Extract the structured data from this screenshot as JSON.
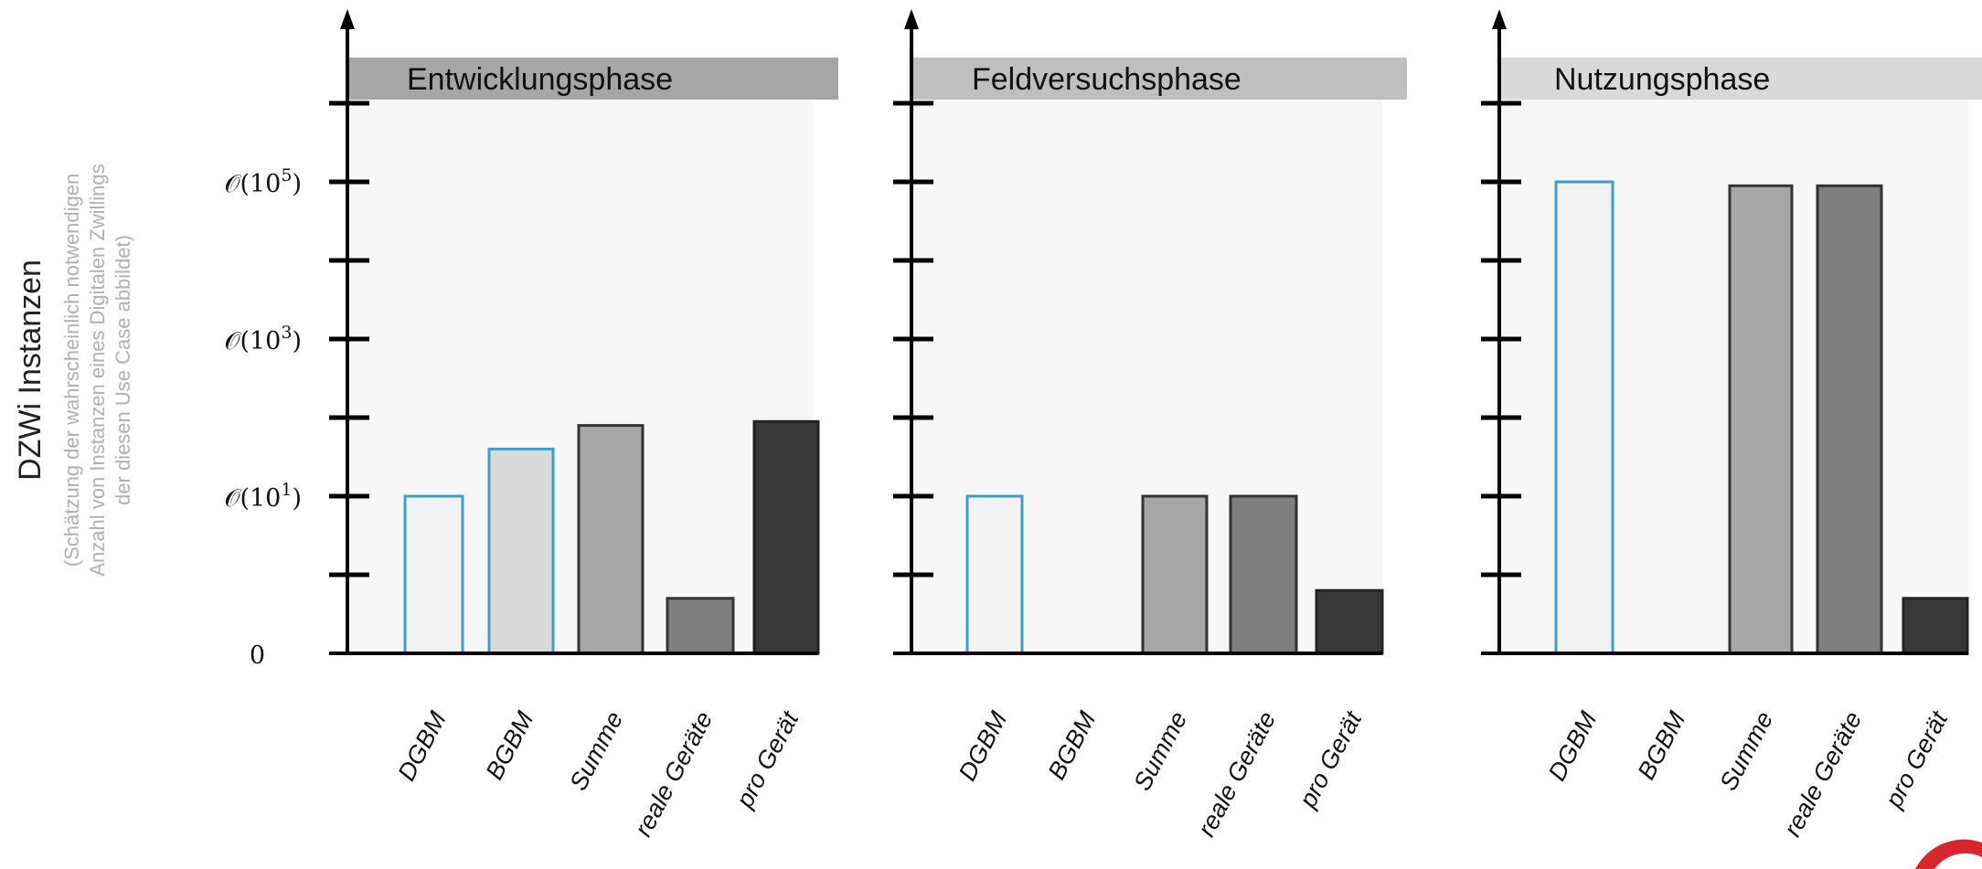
{
  "chart_data": {
    "type": "bar",
    "ylabel": "DZWi Instanzen",
    "ylabel_note": [
      "(Schätzung der wahrscheinlich notwendigen",
      "Anzahl von Instanzen eines Digitalen Zwillings",
      "der diesen Use Case abbildet)"
    ],
    "yscale": "log (ordinal ticks)",
    "ylim": [
      0,
      7
    ],
    "yticks": [
      1,
      2,
      3,
      4,
      5,
      6,
      7
    ],
    "ytick_labels": [
      {
        "level": 0,
        "base": "",
        "exp": "",
        "text": "0"
      },
      {
        "level": 2,
        "base": "𝒪(10",
        "exp": "1",
        "close": ")"
      },
      {
        "level": 4,
        "base": "𝒪(10",
        "exp": "3",
        "close": ")"
      },
      {
        "level": 6,
        "base": "𝒪(10",
        "exp": "5",
        "close": ")"
      }
    ],
    "categories": [
      "DGBM",
      "BGBM",
      "Summe",
      "reale Geräte",
      "pro Gerät"
    ],
    "series_colors": [
      "#f2f2f2",
      "#d9d9d9",
      "#a6a6a6",
      "#7f7f7f",
      "#383838"
    ],
    "series_borders": [
      "#3a9fd0",
      "#3a9fd0",
      "#333333",
      "#333333",
      "#222222"
    ],
    "panels": [
      {
        "title": "Entwicklungsphase",
        "header_color": "#a6a6a6",
        "values": [
          2.0,
          2.6,
          2.9,
          0.7,
          2.95
        ]
      },
      {
        "title": "Feldversuchsphase",
        "header_color": "#bfbfbf",
        "values": [
          2.0,
          0,
          2.0,
          2.0,
          0.8
        ]
      },
      {
        "title": "Nutzungsphase",
        "header_color": "#d9d9d9",
        "values": [
          6.0,
          0,
          5.95,
          5.95,
          0.7
        ]
      }
    ]
  }
}
